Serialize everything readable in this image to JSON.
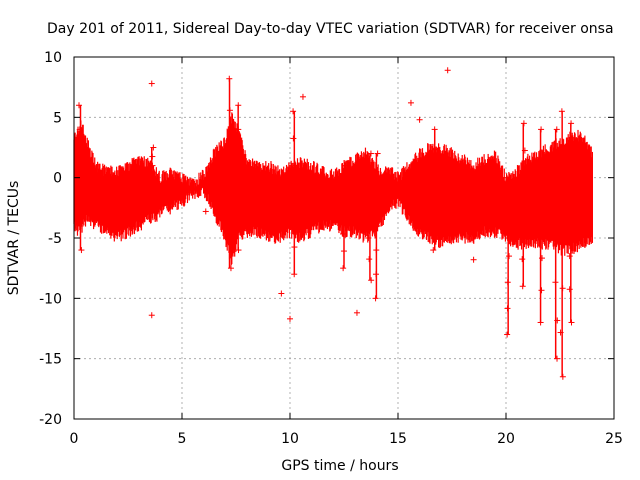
{
  "chart_data": {
    "type": "scatter",
    "title": "Day 201 of 2011, Sidereal Day-to-day VTEC variation (SDTVAR) for receiver onsa",
    "xlabel": "GPS time / hours",
    "ylabel": "SDTVAR / TECUs",
    "xlim": [
      0,
      25
    ],
    "ylim": [
      -20,
      10
    ],
    "xticks": [
      0,
      5,
      10,
      15,
      20,
      25
    ],
    "yticks": [
      10,
      5,
      0,
      -5,
      -10,
      -15,
      -20
    ],
    "x_tick_labels": [
      "0",
      "5",
      "10",
      "15",
      "20",
      "25"
    ],
    "y_tick_labels": [
      "10",
      "5",
      "0",
      "-5",
      "-10",
      "-15",
      "-20"
    ],
    "grid": true,
    "marker": "plus",
    "color": "#ff0000",
    "band": {
      "x": [
        0,
        0.2,
        0.4,
        0.6,
        1,
        1.5,
        2,
        2.5,
        3,
        3.5,
        4,
        4.5,
        5,
        5.5,
        6,
        6.5,
        7,
        7.3,
        7.6,
        8,
        8.5,
        9,
        9.5,
        10,
        10.5,
        11,
        11.5,
        12,
        12.5,
        13,
        13.5,
        14,
        14.3,
        14.6,
        15,
        15.5,
        16,
        16.5,
        17,
        17.5,
        18,
        18.5,
        19,
        19.5,
        20,
        20.5,
        21,
        21.5,
        22,
        22.5,
        23,
        23.5,
        24
      ],
      "upper": [
        3,
        4,
        4.5,
        3,
        1,
        0.5,
        0.5,
        1,
        1.5,
        1.2,
        0,
        0.5,
        0,
        -0.5,
        0.3,
        2,
        3,
        5,
        4,
        1.5,
        1,
        1,
        0.5,
        1,
        1.2,
        1,
        0.5,
        0.3,
        1,
        1.5,
        2,
        1,
        0.3,
        0.8,
        0,
        1,
        2,
        2.5,
        2.5,
        2,
        1.5,
        1,
        1.5,
        1.8,
        0,
        0.5,
        1.5,
        2,
        2.5,
        3,
        3.5,
        3.5,
        2
      ],
      "lower": [
        -4,
        -4.5,
        -4,
        -3.5,
        -4,
        -4.5,
        -5,
        -4.5,
        -4,
        -3.5,
        -3,
        -2.5,
        -2,
        -1.5,
        -1,
        -3,
        -5,
        -7,
        -5,
        -4.5,
        -4.5,
        -5,
        -5,
        -4.5,
        -5,
        -4.5,
        -4,
        -4,
        -4.5,
        -4.5,
        -5,
        -4.5,
        -3.5,
        -2.5,
        -2,
        -3.5,
        -4.5,
        -5,
        -5.5,
        -5,
        -5,
        -5,
        -4.5,
        -4.5,
        -5,
        -5.5,
        -5.5,
        -5.5,
        -5.5,
        -6,
        -6,
        -5.5,
        -5
      ]
    },
    "spikes": [
      {
        "x": 0.3,
        "low": -6,
        "high": 6
      },
      {
        "x": 3.6,
        "low": -2,
        "high": 2.5
      },
      {
        "x": 7.2,
        "low": -7.5,
        "high": 8.2
      },
      {
        "x": 7.6,
        "low": -6,
        "high": 6
      },
      {
        "x": 10.2,
        "low": -8,
        "high": 5.5
      },
      {
        "x": 12.5,
        "low": -7.5,
        "high": 1
      },
      {
        "x": 13.7,
        "low": -8.5,
        "high": 2
      },
      {
        "x": 14.0,
        "low": -10,
        "high": 2
      },
      {
        "x": 16.7,
        "low": -6,
        "high": 4
      },
      {
        "x": 20.1,
        "low": -13,
        "high": 0
      },
      {
        "x": 20.8,
        "low": -9,
        "high": 4.5
      },
      {
        "x": 21.6,
        "low": -12,
        "high": 4
      },
      {
        "x": 22.3,
        "low": -15,
        "high": 4
      },
      {
        "x": 22.6,
        "low": -16.5,
        "high": 5.5
      },
      {
        "x": 23.0,
        "low": -12,
        "high": 4.5
      }
    ],
    "outliers": [
      {
        "x": 3.6,
        "y": 7.8
      },
      {
        "x": 3.6,
        "y": -11.4
      },
      {
        "x": 6.1,
        "y": -2.8
      },
      {
        "x": 9.6,
        "y": -9.6
      },
      {
        "x": 10.0,
        "y": -11.7
      },
      {
        "x": 10.6,
        "y": 6.7
      },
      {
        "x": 13.1,
        "y": -11.2
      },
      {
        "x": 15.6,
        "y": 6.2
      },
      {
        "x": 16.0,
        "y": 4.8
      },
      {
        "x": 17.3,
        "y": 8.9
      },
      {
        "x": 18.5,
        "y": -6.8
      }
    ]
  }
}
